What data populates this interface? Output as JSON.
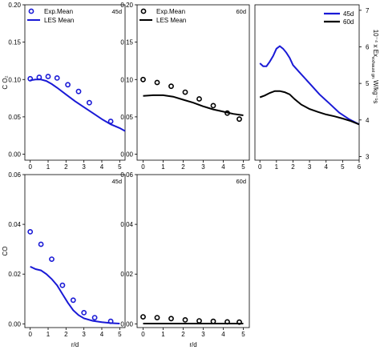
{
  "chart_data": [
    {
      "id": "co2-45d",
      "type": "scatter",
      "tag": "45d",
      "ylabel": "C O₂",
      "xlabel": "",
      "xlim": [
        -0.3,
        5.3
      ],
      "ylim": [
        -0.008,
        0.2
      ],
      "xticks": [
        0,
        1,
        2,
        3,
        4,
        5
      ],
      "yticks": [
        0.0,
        0.05,
        0.1,
        0.15,
        0.2
      ],
      "ytick_labels": [
        "0.00",
        "0.05",
        "0.10",
        "0.15",
        "0.20"
      ],
      "color": "#1a1ad6",
      "legend": {
        "position": "top-left",
        "marker_label": "Exp.Mean",
        "line_label": "LES Mean"
      },
      "series": [
        {
          "name": "Exp.Mean",
          "kind": "markers",
          "x": [
            0,
            0.5,
            1.0,
            1.5,
            2.1,
            2.7,
            3.3,
            4.5
          ],
          "y": [
            0.101,
            0.103,
            0.104,
            0.102,
            0.093,
            0.084,
            0.069,
            0.044
          ]
        },
        {
          "name": "LES Mean",
          "kind": "line",
          "x": [
            0,
            0.3,
            0.6,
            0.9,
            1.2,
            1.5,
            2.0,
            2.5,
            3.0,
            3.5,
            4.0,
            4.5,
            5.0,
            5.3
          ],
          "y": [
            0.099,
            0.1,
            0.1,
            0.098,
            0.094,
            0.089,
            0.08,
            0.071,
            0.063,
            0.055,
            0.047,
            0.04,
            0.035,
            0.031
          ]
        }
      ]
    },
    {
      "id": "co2-60d",
      "type": "scatter",
      "tag": "60d",
      "ylabel": "",
      "xlabel": "",
      "xlim": [
        -0.3,
        5.3
      ],
      "ylim": [
        -0.008,
        0.2
      ],
      "xticks": [
        0,
        1,
        2,
        3,
        4,
        5
      ],
      "yticks": [
        0.0,
        0.05,
        0.1,
        0.15,
        0.2
      ],
      "ytick_labels": [
        "0.00",
        "0.05",
        "0.10",
        "0.15",
        "0.20"
      ],
      "color": "#000000",
      "legend": {
        "position": "top-left",
        "marker_label": "Exp.Mean",
        "line_label": "LES Mean"
      },
      "series": [
        {
          "name": "Exp.Mean",
          "kind": "markers",
          "x": [
            0,
            0.7,
            1.4,
            2.1,
            2.8,
            3.5,
            4.2,
            4.8
          ],
          "y": [
            0.1,
            0.096,
            0.091,
            0.083,
            0.074,
            0.065,
            0.055,
            0.047
          ]
        },
        {
          "name": "LES Mean",
          "kind": "line",
          "x": [
            0,
            0.5,
            1.0,
            1.5,
            2.0,
            2.5,
            3.0,
            3.5,
            4.0,
            4.5,
            5.0
          ],
          "y": [
            0.078,
            0.079,
            0.079,
            0.077,
            0.073,
            0.069,
            0.064,
            0.06,
            0.057,
            0.054,
            0.052
          ]
        }
      ]
    },
    {
      "id": "exhaust-energy",
      "type": "line",
      "tag": "",
      "ylabel": "10⁻⁴ x Ex",
      "ylabel_sub": "exhaust gn",
      "ylabel_unit": " W/kg⁻¹s",
      "xlabel": "",
      "xlim": [
        -0.3,
        6.0
      ],
      "ylim": [
        2.9,
        7.15
      ],
      "xticks": [
        0,
        1,
        2,
        3,
        4,
        5,
        6
      ],
      "yticks": [
        3,
        4,
        5,
        6,
        7
      ],
      "ytick_labels": [
        "3",
        "4",
        "5",
        "6",
        "7"
      ],
      "legend": {
        "position": "top-right"
      },
      "series": [
        {
          "name": "45d",
          "kind": "line",
          "color": "#1a1ad6",
          "x": [
            0,
            0.2,
            0.4,
            0.6,
            0.8,
            1.0,
            1.2,
            1.4,
            1.6,
            1.8,
            2.0,
            2.4,
            3.0,
            3.6,
            4.2,
            4.8,
            5.4,
            6.0
          ],
          "y": [
            5.55,
            5.47,
            5.47,
            5.6,
            5.75,
            5.95,
            6.02,
            5.95,
            5.84,
            5.7,
            5.5,
            5.3,
            5.0,
            4.7,
            4.45,
            4.2,
            4.02,
            3.88
          ]
        },
        {
          "name": "60d",
          "kind": "line",
          "color": "#000000",
          "x": [
            0,
            0.3,
            0.6,
            0.9,
            1.2,
            1.5,
            1.8,
            2.1,
            2.5,
            3.0,
            3.5,
            4.0,
            4.5,
            5.0,
            5.5,
            6.0
          ],
          "y": [
            4.62,
            4.67,
            4.74,
            4.79,
            4.79,
            4.76,
            4.7,
            4.57,
            4.42,
            4.3,
            4.22,
            4.15,
            4.1,
            4.04,
            3.97,
            3.88
          ]
        }
      ]
    },
    {
      "id": "co-45d",
      "type": "scatter",
      "tag": "45d",
      "ylabel": "CO",
      "xlabel": "r/d",
      "xlim": [
        -0.3,
        5.3
      ],
      "ylim": [
        -0.0015,
        0.06
      ],
      "xticks": [
        0,
        1,
        2,
        3,
        4,
        5
      ],
      "yticks": [
        0.0,
        0.02,
        0.04,
        0.06
      ],
      "ytick_labels": [
        "0.00",
        "0.02",
        "0.04",
        "0.06"
      ],
      "color": "#1a1ad6",
      "series": [
        {
          "name": "Exp.Mean",
          "kind": "markers",
          "x": [
            0,
            0.6,
            1.2,
            1.8,
            2.4,
            3.0,
            3.6,
            4.5
          ],
          "y": [
            0.037,
            0.032,
            0.026,
            0.0155,
            0.0095,
            0.0045,
            0.0025,
            0.001
          ]
        },
        {
          "name": "LES Mean",
          "kind": "line",
          "x": [
            0,
            0.3,
            0.6,
            0.9,
            1.2,
            1.5,
            1.8,
            2.1,
            2.4,
            2.7,
            3.0,
            3.5,
            4.0,
            4.5,
            5.0
          ],
          "y": [
            0.023,
            0.022,
            0.0215,
            0.02,
            0.018,
            0.0155,
            0.012,
            0.0085,
            0.0055,
            0.0035,
            0.0022,
            0.0012,
            0.0007,
            0.0003,
            0.0001
          ]
        }
      ]
    },
    {
      "id": "co-60d",
      "type": "scatter",
      "tag": "60d",
      "ylabel": "",
      "xlabel": "r/d",
      "xlim": [
        -0.3,
        5.3
      ],
      "ylim": [
        -0.0015,
        0.06
      ],
      "xticks": [
        0,
        1,
        2,
        3,
        4,
        5
      ],
      "yticks": [
        0.0,
        0.02,
        0.04,
        0.06
      ],
      "ytick_labels": [
        "0.00",
        "0.02",
        "0.04",
        "0.06"
      ],
      "color": "#000000",
      "series": [
        {
          "name": "Exp.Mean",
          "kind": "markers",
          "x": [
            0,
            0.7,
            1.4,
            2.1,
            2.8,
            3.5,
            4.2,
            4.8
          ],
          "y": [
            0.0028,
            0.0025,
            0.0021,
            0.0016,
            0.0012,
            0.001,
            0.0008,
            0.0007
          ]
        },
        {
          "name": "LES Mean",
          "kind": "line",
          "x": [
            0,
            0.5,
            1.0,
            1.5,
            2.0,
            2.5,
            3.0,
            3.5,
            4.0,
            4.5,
            5.0
          ],
          "y": [
            0.0001,
            0.0001,
            0.0001,
            0.0001,
            0.0001,
            0.0001,
            0.0001,
            0.0001,
            0.0001,
            0.0001,
            0.0001
          ]
        }
      ]
    }
  ]
}
